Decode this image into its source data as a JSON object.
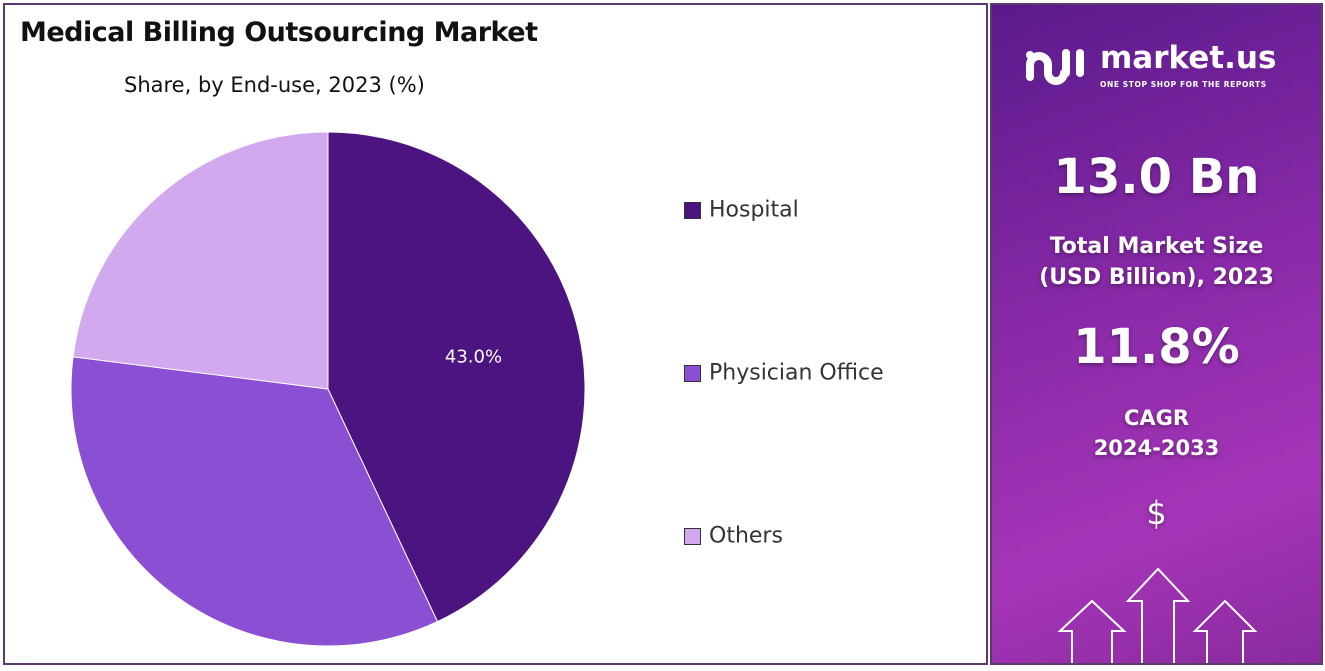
{
  "chart_data": {
    "type": "pie",
    "title": "Medical Billing Outsourcing Market",
    "subtitle": "Share, by End-use, 2023 (%)",
    "categories": [
      "Hospital",
      "Physician Office",
      "Others"
    ],
    "values": [
      43.0,
      34.0,
      23.0
    ],
    "data_labels": [
      "43.0%",
      "",
      ""
    ],
    "colors": [
      "#4b1480",
      "#8a4fd3",
      "#d2a8ef"
    ],
    "legend_position": "right"
  },
  "panel": {
    "logo_name": "market.us",
    "logo_tagline": "ONE STOP SHOP FOR THE REPORTS",
    "market_size": "13.0 Bn",
    "market_size_label_1": "Total Market Size",
    "market_size_label_2": "(USD Billion), 2023",
    "cagr": "11.8%",
    "cagr_label_1": "CAGR",
    "cagr_label_2": "2024-2033",
    "dollar": "$"
  }
}
